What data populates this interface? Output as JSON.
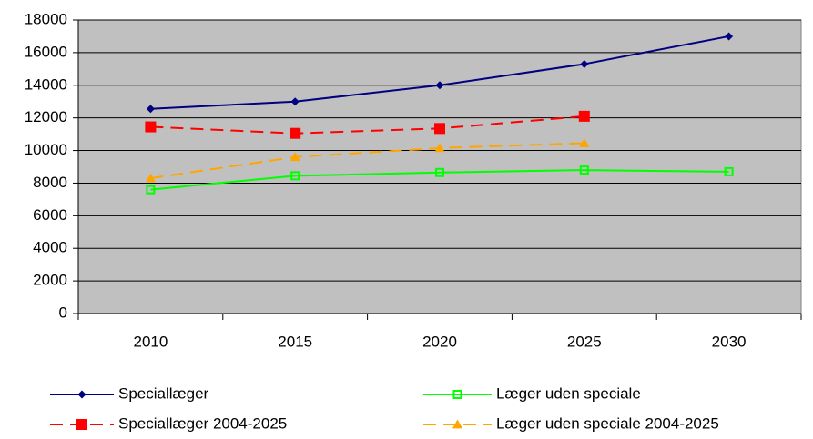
{
  "chart_data": {
    "type": "line",
    "categories": [
      "2010",
      "2015",
      "2020",
      "2025",
      "2030"
    ],
    "series": [
      {
        "name": "Speciallæger",
        "color": "#000080",
        "marker": "diamond",
        "dashed": false,
        "values": [
          12550,
          13000,
          14000,
          15300,
          17000
        ]
      },
      {
        "name": "Læger uden speciale",
        "color": "#00ff00",
        "marker": "hollow-square",
        "dashed": false,
        "values": [
          7600,
          8450,
          8650,
          8800,
          8700
        ]
      },
      {
        "name": "Speciallæger 2004-2025",
        "color": "#ff0000",
        "marker": "square",
        "dashed": true,
        "values": [
          11450,
          11050,
          11350,
          12100,
          null
        ]
      },
      {
        "name": "Læger uden speciale 2004-2025",
        "color": "#ffa500",
        "marker": "triangle",
        "dashed": true,
        "values": [
          8300,
          9600,
          10150,
          10450,
          null
        ]
      }
    ],
    "ylim": [
      0,
      18000
    ],
    "yticks": [
      0,
      2000,
      4000,
      6000,
      8000,
      10000,
      12000,
      14000,
      16000,
      18000
    ],
    "grid": true,
    "legend": "bottom"
  }
}
